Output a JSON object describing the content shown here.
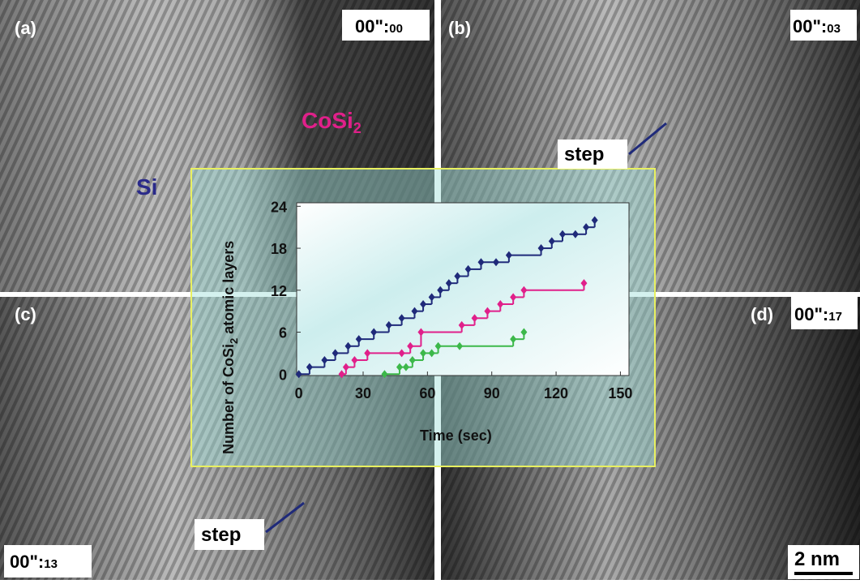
{
  "panels": [
    {
      "label": "(a)",
      "time": "00\":",
      "time_sub": "00"
    },
    {
      "label": "(b)",
      "time": "00\":",
      "time_sub": "03"
    },
    {
      "label": "(c)",
      "time": "00\":",
      "time_sub": "13"
    },
    {
      "label": "(d)",
      "time": "00\":",
      "time_sub": "17"
    }
  ],
  "annotations": {
    "cosi": "CoSi",
    "cosi_sub": "2",
    "si": "Si",
    "step_b": "step",
    "step_c": "step",
    "scale": "2 nm"
  },
  "chart_data": {
    "type": "step",
    "ylabel": "Number of CoSi",
    "ylabel_sub": "2",
    "ylabel_end": " atomic layers",
    "xlabel": "Time (sec)",
    "xlim": [
      -1,
      154
    ],
    "xticks": [
      0,
      30,
      60,
      90,
      120,
      150
    ],
    "ylim": [
      -0.2,
      24.5
    ],
    "yticks": [
      0,
      6,
      12,
      18,
      24
    ],
    "series": [
      {
        "color": "#1f2a7a",
        "x": [
          0,
          5,
          12,
          17,
          23,
          28,
          35,
          42,
          48,
          54,
          58,
          62,
          66,
          70,
          74,
          79,
          85,
          92,
          98,
          113,
          118,
          123,
          129,
          134,
          138
        ],
        "values": [
          0,
          1,
          2,
          3,
          4,
          5,
          6,
          7,
          8,
          9,
          10,
          11,
          12,
          13,
          14,
          15,
          16,
          16,
          17,
          18,
          19,
          20,
          20,
          21,
          22
        ]
      },
      {
        "color": "#e0208a",
        "x": [
          20,
          22,
          26,
          32,
          48,
          52,
          57,
          76,
          82,
          88,
          94,
          100,
          105,
          133
        ],
        "values": [
          0,
          1,
          2,
          3,
          3,
          4,
          6,
          7,
          8,
          9,
          10,
          11,
          12,
          13
        ]
      },
      {
        "color": "#3cb84a",
        "x": [
          40,
          47,
          50,
          53,
          58,
          62,
          65,
          75,
          100,
          105
        ],
        "values": [
          0,
          1,
          1,
          2,
          3,
          3,
          4,
          4,
          5,
          6
        ]
      }
    ]
  }
}
